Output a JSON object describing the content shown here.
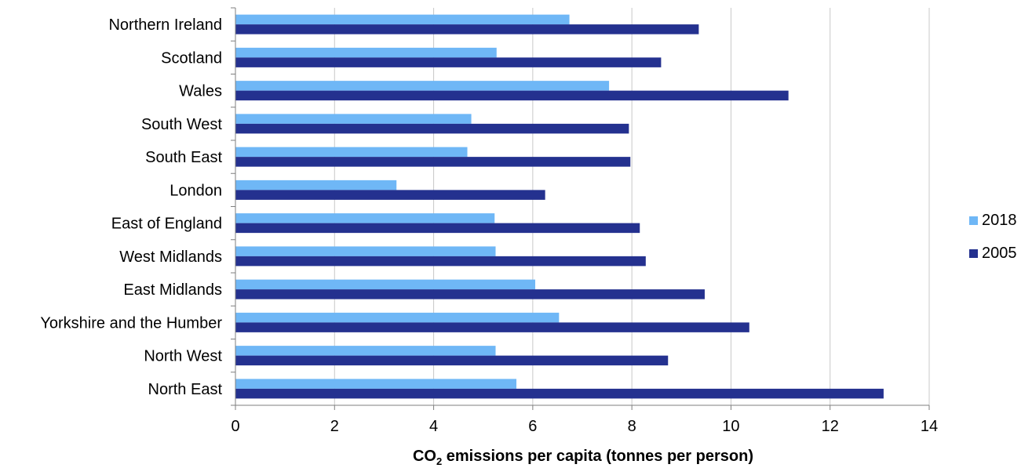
{
  "chart_data": {
    "type": "bar",
    "orientation": "horizontal",
    "categories": [
      "North East",
      "North West",
      "Yorkshire and the Humber",
      "East Midlands",
      "West Midlands",
      "East of England",
      "London",
      "South East",
      "South West",
      "Wales",
      "Scotland",
      "Northern Ireland"
    ],
    "series": [
      {
        "name": "2018",
        "color": "#6fb7f6",
        "values": [
          5.67,
          5.25,
          6.53,
          6.05,
          5.25,
          5.23,
          3.25,
          4.68,
          4.76,
          7.54,
          5.27,
          6.74
        ]
      },
      {
        "name": "2005",
        "color": "#24318f",
        "values": [
          13.08,
          8.73,
          10.37,
          9.47,
          8.28,
          8.16,
          6.25,
          7.97,
          7.94,
          11.16,
          8.59,
          9.35
        ]
      }
    ],
    "x_ticks": [
      "0",
      "2",
      "4",
      "6",
      "8",
      "10",
      "12",
      "14"
    ],
    "xlim": [
      0,
      14
    ],
    "xlabel": {
      "main": "CO",
      "subscript": "2",
      "rest": " emissions per capita (tonnes per person)"
    },
    "ylabel": "",
    "grid": "vertical",
    "legend_position": "right"
  }
}
